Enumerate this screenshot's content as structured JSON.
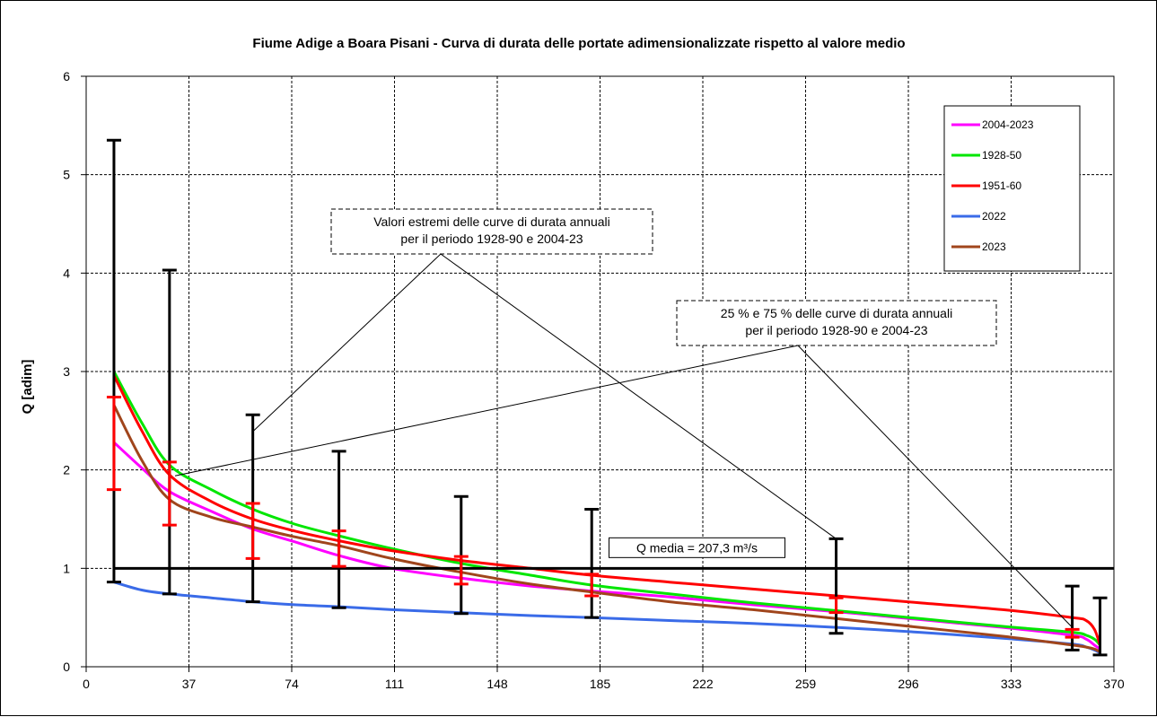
{
  "chart_data": {
    "type": "line",
    "title": "Fiume Adige a Boara Pisani - Curva di durata delle portate adimensionalizzate rispetto al valore medio",
    "ylabel": "Q [adim]",
    "xlabel": "",
    "xlim": [
      0,
      370
    ],
    "ylim": [
      0,
      6
    ],
    "xticks": [
      "0",
      "37",
      "74",
      "111",
      "148",
      "185",
      "222",
      "259",
      "296",
      "333",
      "370"
    ],
    "yticks": [
      "0",
      "1",
      "2",
      "3",
      "4",
      "5",
      "6"
    ],
    "grid": true,
    "legend_position": "top-right",
    "series": [
      {
        "name": "2004-2023",
        "color": "#ff00ff",
        "x": [
          10,
          20,
          30,
          45,
          60,
          75,
          91,
          110,
          135,
          160,
          182,
          210,
          240,
          270,
          300,
          330,
          355,
          360,
          363,
          365
        ],
        "y": [
          2.28,
          2.02,
          1.78,
          1.58,
          1.4,
          1.27,
          1.13,
          1.0,
          0.9,
          0.82,
          0.77,
          0.71,
          0.63,
          0.56,
          0.48,
          0.4,
          0.32,
          0.28,
          0.22,
          0.18
        ]
      },
      {
        "name": "1928-50",
        "color": "#00e600",
        "x": [
          10,
          20,
          30,
          45,
          60,
          75,
          91,
          110,
          135,
          160,
          182,
          210,
          240,
          270,
          300,
          330,
          355,
          360,
          363,
          365
        ],
        "y": [
          3.0,
          2.48,
          2.05,
          1.8,
          1.6,
          1.45,
          1.33,
          1.2,
          1.05,
          0.93,
          0.83,
          0.74,
          0.65,
          0.57,
          0.49,
          0.41,
          0.35,
          0.32,
          0.28,
          0.22
        ]
      },
      {
        "name": "1951-60",
        "color": "#ff0000",
        "x": [
          10,
          20,
          30,
          45,
          60,
          75,
          91,
          110,
          135,
          160,
          182,
          210,
          240,
          270,
          300,
          330,
          355,
          360,
          363,
          365
        ],
        "y": [
          2.96,
          2.4,
          1.95,
          1.68,
          1.5,
          1.38,
          1.28,
          1.18,
          1.08,
          1.0,
          0.93,
          0.86,
          0.79,
          0.72,
          0.65,
          0.58,
          0.5,
          0.47,
          0.38,
          0.22
        ]
      },
      {
        "name": "2022",
        "color": "#3a6be8",
        "x": [
          10,
          20,
          30,
          45,
          60,
          75,
          91,
          110,
          135,
          160,
          182,
          210,
          240,
          270,
          300,
          330,
          355,
          360,
          363,
          365
        ],
        "y": [
          0.86,
          0.78,
          0.74,
          0.7,
          0.66,
          0.63,
          0.61,
          0.58,
          0.55,
          0.52,
          0.5,
          0.47,
          0.44,
          0.4,
          0.35,
          0.29,
          0.23,
          0.2,
          0.17,
          0.14
        ]
      },
      {
        "name": "2023",
        "color": "#a0451c",
        "x": [
          10,
          20,
          30,
          45,
          60,
          75,
          91,
          110,
          135,
          160,
          182,
          210,
          240,
          270,
          300,
          330,
          355,
          360,
          363,
          365
        ],
        "y": [
          2.66,
          2.1,
          1.7,
          1.52,
          1.42,
          1.32,
          1.23,
          1.1,
          0.96,
          0.84,
          0.76,
          0.66,
          0.58,
          0.49,
          0.4,
          0.31,
          0.22,
          0.2,
          0.18,
          0.15
        ]
      }
    ],
    "whiskers_extreme": {
      "color": "#000000",
      "x": [
        10,
        30,
        60,
        91,
        135,
        182,
        270,
        355,
        365
      ],
      "low": [
        0.86,
        0.74,
        0.66,
        0.6,
        0.54,
        0.5,
        0.34,
        0.17,
        0.12
      ],
      "high": [
        5.35,
        4.03,
        2.56,
        2.19,
        1.73,
        1.6,
        1.3,
        0.82,
        0.7
      ]
    },
    "whiskers_quartile": {
      "color": "#ff0000",
      "x": [
        10,
        30,
        60,
        91,
        135,
        182,
        270,
        355
      ],
      "low": [
        1.8,
        1.44,
        1.1,
        1.02,
        0.84,
        0.72,
        0.55,
        0.3
      ],
      "high": [
        2.74,
        2.08,
        1.66,
        1.38,
        1.12,
        0.94,
        0.7,
        0.38
      ]
    },
    "mean_line": {
      "y": 1.0,
      "x_start": 10,
      "x_end": 370,
      "color": "#000000",
      "label": "Q media = 207,3 m³/s"
    },
    "annotations": [
      {
        "lines": [
          "Valori estremi delle curve di durata annuali",
          "per il periodo 1928-90 e 2004-23"
        ],
        "targets": [
          {
            "x": 60,
            "y": 2.39
          },
          {
            "x": 270,
            "y": 1.3
          }
        ]
      },
      {
        "lines": [
          "25 % e 75 % delle curve di durata annuali",
          "per il periodo 1928-90 e 2004-23"
        ],
        "targets": [
          {
            "x": 32,
            "y": 1.94
          },
          {
            "x": 355,
            "y": 0.4
          }
        ]
      }
    ]
  }
}
